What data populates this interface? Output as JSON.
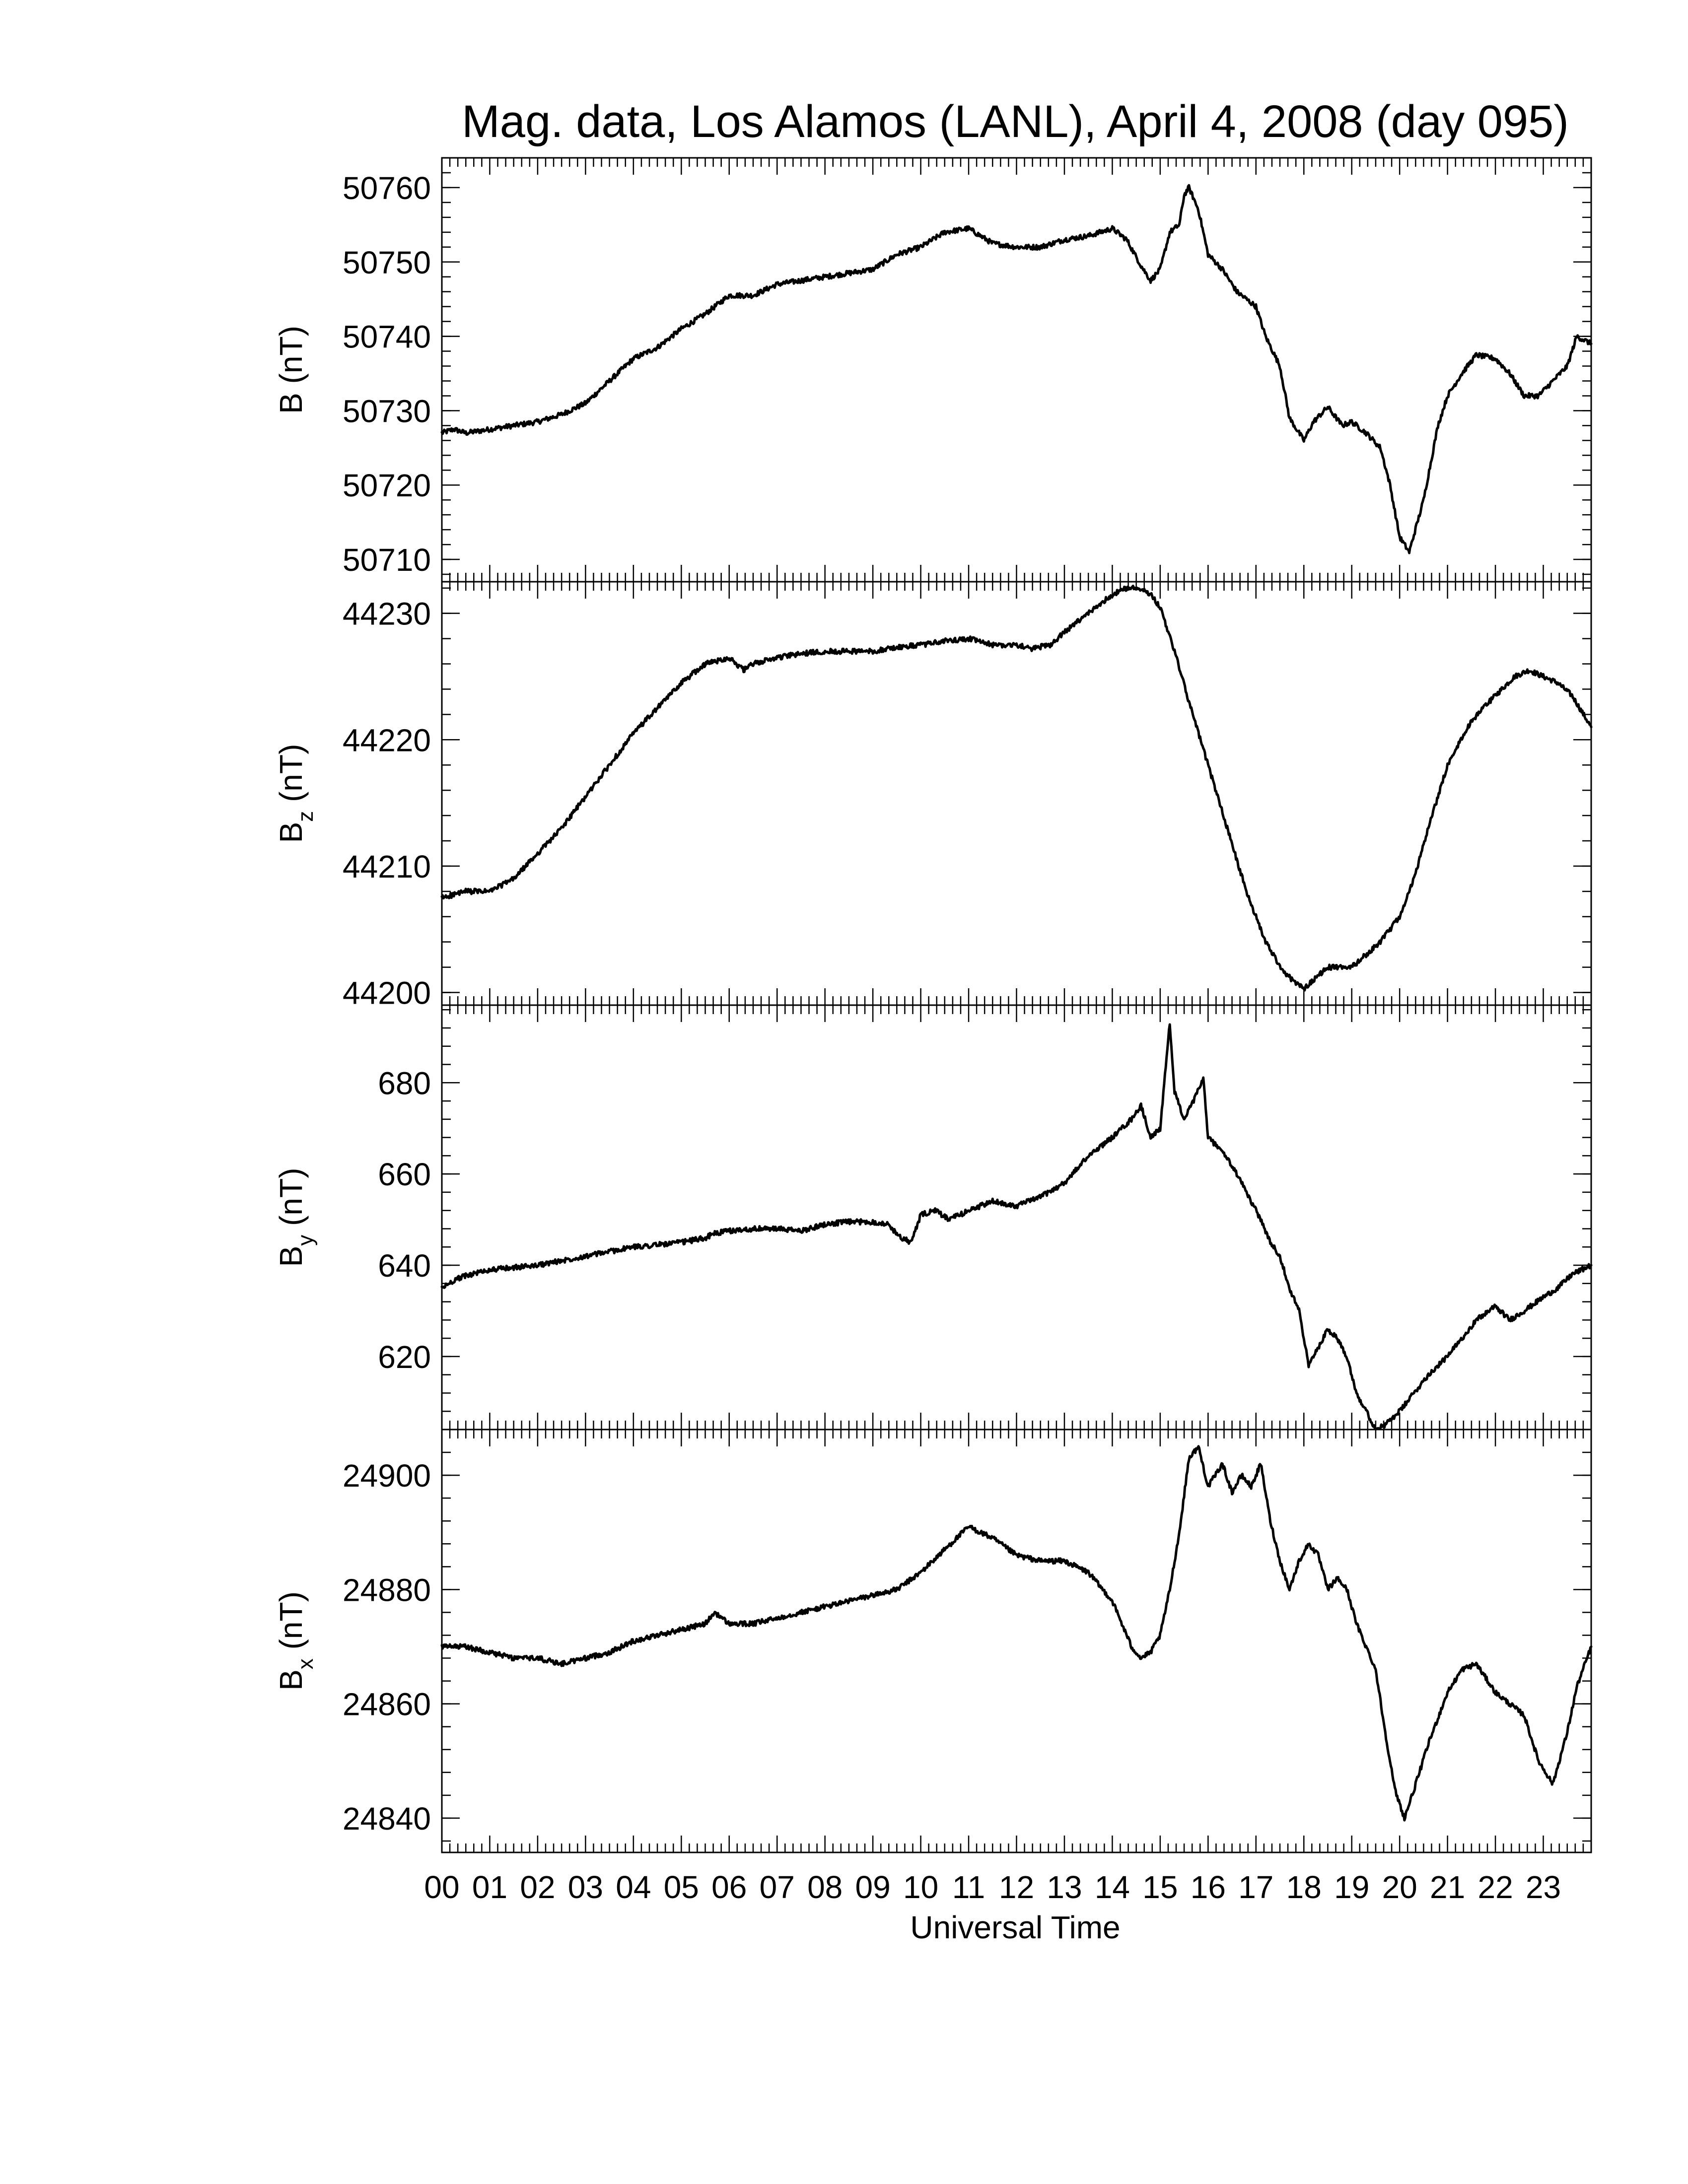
{
  "chart_data": {
    "type": "line",
    "title": "Mag. data, Los Alamos (LANL), April 4, 2008 (day 095)",
    "xlabel": "Universal Time",
    "x_unit": "hours UT",
    "xlim": [
      0,
      24
    ],
    "x_tick_labels": [
      "00",
      "01",
      "02",
      "03",
      "04",
      "05",
      "06",
      "07",
      "08",
      "09",
      "10",
      "11",
      "12",
      "13",
      "14",
      "15",
      "16",
      "17",
      "18",
      "19",
      "20",
      "21",
      "22",
      "23"
    ],
    "panels": [
      {
        "id": "B",
        "ylabel_main": "B",
        "ylabel_sub": "",
        "ylabel_unit": "(nT)",
        "ylim": [
          50707,
          50764
        ],
        "yticks": [
          50710,
          50720,
          50730,
          50740,
          50750,
          50760
        ],
        "series": {
          "x": [
            0,
            0.25,
            0.5,
            1,
            1.5,
            2,
            2.5,
            3,
            3.5,
            4,
            4.5,
            5,
            5.5,
            5.7,
            6,
            6.5,
            7,
            7.5,
            8,
            8.5,
            9,
            9.5,
            10,
            10.5,
            11,
            11.5,
            12,
            12.5,
            13,
            13.5,
            14,
            14.3,
            14.6,
            14.8,
            15,
            15.2,
            15.4,
            15.5,
            15.6,
            15.8,
            16,
            16.3,
            16.6,
            17,
            17.2,
            17.5,
            17.7,
            18,
            18.2,
            18.5,
            18.8,
            19,
            19.3,
            19.6,
            19.8,
            20,
            20.2,
            20.5,
            20.8,
            21,
            21.3,
            21.6,
            22,
            22.3,
            22.6,
            22.9,
            23.2,
            23.5,
            23.7,
            24
          ],
          "y": [
            50727,
            50727.5,
            50727,
            50727.5,
            50728,
            50728.5,
            50729.5,
            50731,
            50734,
            50737,
            50738.5,
            50741,
            50743,
            50744,
            50745.5,
            50745.5,
            50747,
            50747.5,
            50748,
            50748.5,
            50749,
            50751,
            50752,
            50754,
            50754.5,
            50752.5,
            50752,
            50752,
            50753,
            50753.5,
            50754.5,
            50753,
            50749.5,
            50747.5,
            50749,
            50754,
            50755,
            50759,
            50760,
            50757,
            50751,
            50749,
            50746,
            50744,
            50740,
            50736,
            50729,
            50726,
            50728.5,
            50730.5,
            50728,
            50728.5,
            50727,
            50725,
            50720,
            50713,
            50711,
            50718,
            50728,
            50732,
            50735,
            50737.5,
            50737,
            50735,
            50732,
            50732,
            50734,
            50736,
            50740,
            50739
          ]
        }
      },
      {
        "id": "Bz",
        "ylabel_main": "B",
        "ylabel_sub": "z",
        "ylabel_unit": "(nT)",
        "ylim": [
          44199,
          44232.5
        ],
        "yticks": [
          44200,
          44210,
          44220,
          44230
        ],
        "series": {
          "x": [
            0,
            0.5,
            1,
            1.5,
            2,
            2.5,
            3,
            3.5,
            4,
            4.5,
            5,
            5.5,
            6,
            6.3,
            6.5,
            7,
            7.5,
            8,
            8.5,
            9,
            9.5,
            10,
            10.5,
            11,
            11.5,
            12,
            12.3,
            12.7,
            13,
            13.5,
            14,
            14.3,
            14.6,
            14.8,
            15,
            15.3,
            15.6,
            16,
            16.4,
            16.8,
            17.2,
            17.6,
            18,
            18.2,
            18.5,
            18.8,
            19,
            19.3,
            19.6,
            20,
            20.3,
            20.6,
            21,
            21.5,
            22,
            22.4,
            22.7,
            23,
            23.3,
            23.6,
            24
          ],
          "y": [
            44207.5,
            44208,
            44208,
            44209,
            44211,
            44213,
            44215.5,
            44218,
            44220.5,
            44222.5,
            44224.5,
            44226,
            44226.5,
            44225.5,
            44226,
            44226.5,
            44226.8,
            44227,
            44227,
            44227,
            44227.3,
            44227.5,
            44227.8,
            44228,
            44227.5,
            44227.5,
            44227.2,
            44227.5,
            44228.5,
            44230,
            44231.5,
            44232,
            44232,
            44231.5,
            44230.5,
            44227,
            44223,
            44218,
            44213,
            44208,
            44204,
            44201.5,
            44200.3,
            44201,
            44202,
            44202,
            44202,
            44203,
            44204,
            44206,
            44209,
            44213,
            44218,
            44221.5,
            44223.5,
            44225,
            44225.5,
            44225,
            44224.5,
            44223.5,
            44221
          ]
        }
      },
      {
        "id": "By",
        "ylabel_main": "B",
        "ylabel_sub": "y",
        "ylabel_unit": "(nT)",
        "ylim": [
          604,
          697
        ],
        "yticks": [
          620,
          640,
          660,
          680
        ],
        "series": {
          "x": [
            0,
            0.3,
            0.6,
            1,
            1.5,
            2,
            2.5,
            3,
            3.5,
            4,
            4.5,
            5,
            5.5,
            5.7,
            6,
            6.5,
            7,
            7.5,
            8,
            8.5,
            9,
            9.3,
            9.6,
            9.8,
            10,
            10.3,
            10.6,
            11,
            11.5,
            12,
            12.5,
            13,
            13.5,
            14,
            14.2,
            14.4,
            14.6,
            14.8,
            15,
            15.2,
            15.3,
            15.5,
            15.7,
            15.9,
            16,
            16.3,
            16.6,
            16.9,
            17.1,
            17.3,
            17.5,
            17.7,
            17.9,
            18.1,
            18.3,
            18.5,
            18.7,
            18.9,
            19.1,
            19.3,
            19.5,
            19.7,
            20,
            20.3,
            20.6,
            21,
            21.3,
            21.6,
            22,
            22.3,
            22.6,
            23,
            23.3,
            23.6,
            24
          ],
          "y": [
            635,
            637,
            638,
            639,
            639.5,
            640,
            641,
            642,
            643,
            644,
            644.5,
            645,
            646,
            647,
            647.5,
            648,
            648,
            647.5,
            649,
            649.5,
            649.5,
            649,
            646,
            645,
            651,
            652,
            650,
            652,
            654,
            653,
            655,
            658,
            664,
            668,
            670,
            672,
            675,
            668,
            670,
            693,
            678,
            672,
            676,
            681,
            668,
            665,
            660,
            654,
            650,
            645,
            642,
            635,
            630,
            618,
            622,
            626,
            624,
            620,
            612,
            608,
            604,
            605,
            608,
            612,
            616,
            620,
            624,
            628,
            631,
            628,
            630,
            633,
            635,
            638,
            640
          ]
        }
      },
      {
        "id": "Bx",
        "ylabel_main": "B",
        "ylabel_sub": "x",
        "ylabel_unit": "(nT)",
        "ylim": [
          24834,
          24908
        ],
        "yticks": [
          24840,
          24860,
          24880,
          24900
        ],
        "series": {
          "x": [
            0,
            0.5,
            1,
            1.5,
            2,
            2.5,
            3,
            3.5,
            4,
            4.5,
            5,
            5.5,
            5.7,
            6,
            6.5,
            7,
            7.5,
            8,
            8.5,
            9,
            9.5,
            10,
            10.5,
            11,
            11.5,
            12,
            12.5,
            13,
            13.5,
            14,
            14.2,
            14.4,
            14.6,
            14.8,
            15,
            15.2,
            15.4,
            15.6,
            15.8,
            16,
            16.3,
            16.5,
            16.7,
            16.9,
            17.1,
            17.3,
            17.5,
            17.7,
            17.9,
            18.1,
            18.3,
            18.5,
            18.7,
            18.9,
            19.1,
            19.3,
            19.5,
            19.7,
            19.9,
            20.1,
            20.3,
            20.6,
            21,
            21.3,
            21.6,
            22,
            22.3,
            22.6,
            22.9,
            23.2,
            23.5,
            23.7,
            24
          ],
          "y": [
            24870,
            24870,
            24869,
            24868,
            24868,
            24867,
            24868,
            24869,
            24871,
            24872,
            24873,
            24874,
            24876,
            24874,
            24874,
            24875,
            24876,
            24877,
            24878,
            24879,
            24880,
            24883,
            24887,
            24891,
            24889,
            24886,
            24885,
            24885,
            24883,
            24878,
            24874,
            24870,
            24868,
            24869,
            24872,
            24880,
            24890,
            24903,
            24905,
            24898,
            24902,
            24897,
            24900,
            24898,
            24902,
            24892,
            24885,
            24880,
            24885,
            24888,
            24886,
            24880,
            24882,
            24880,
            24874,
            24870,
            24866,
            24855,
            24845,
            24840,
            24845,
            24853,
            24862,
            24866,
            24867,
            24862,
            24860,
            24858,
            24850,
            24846,
            24855,
            24863,
            24870
          ]
        }
      }
    ]
  }
}
